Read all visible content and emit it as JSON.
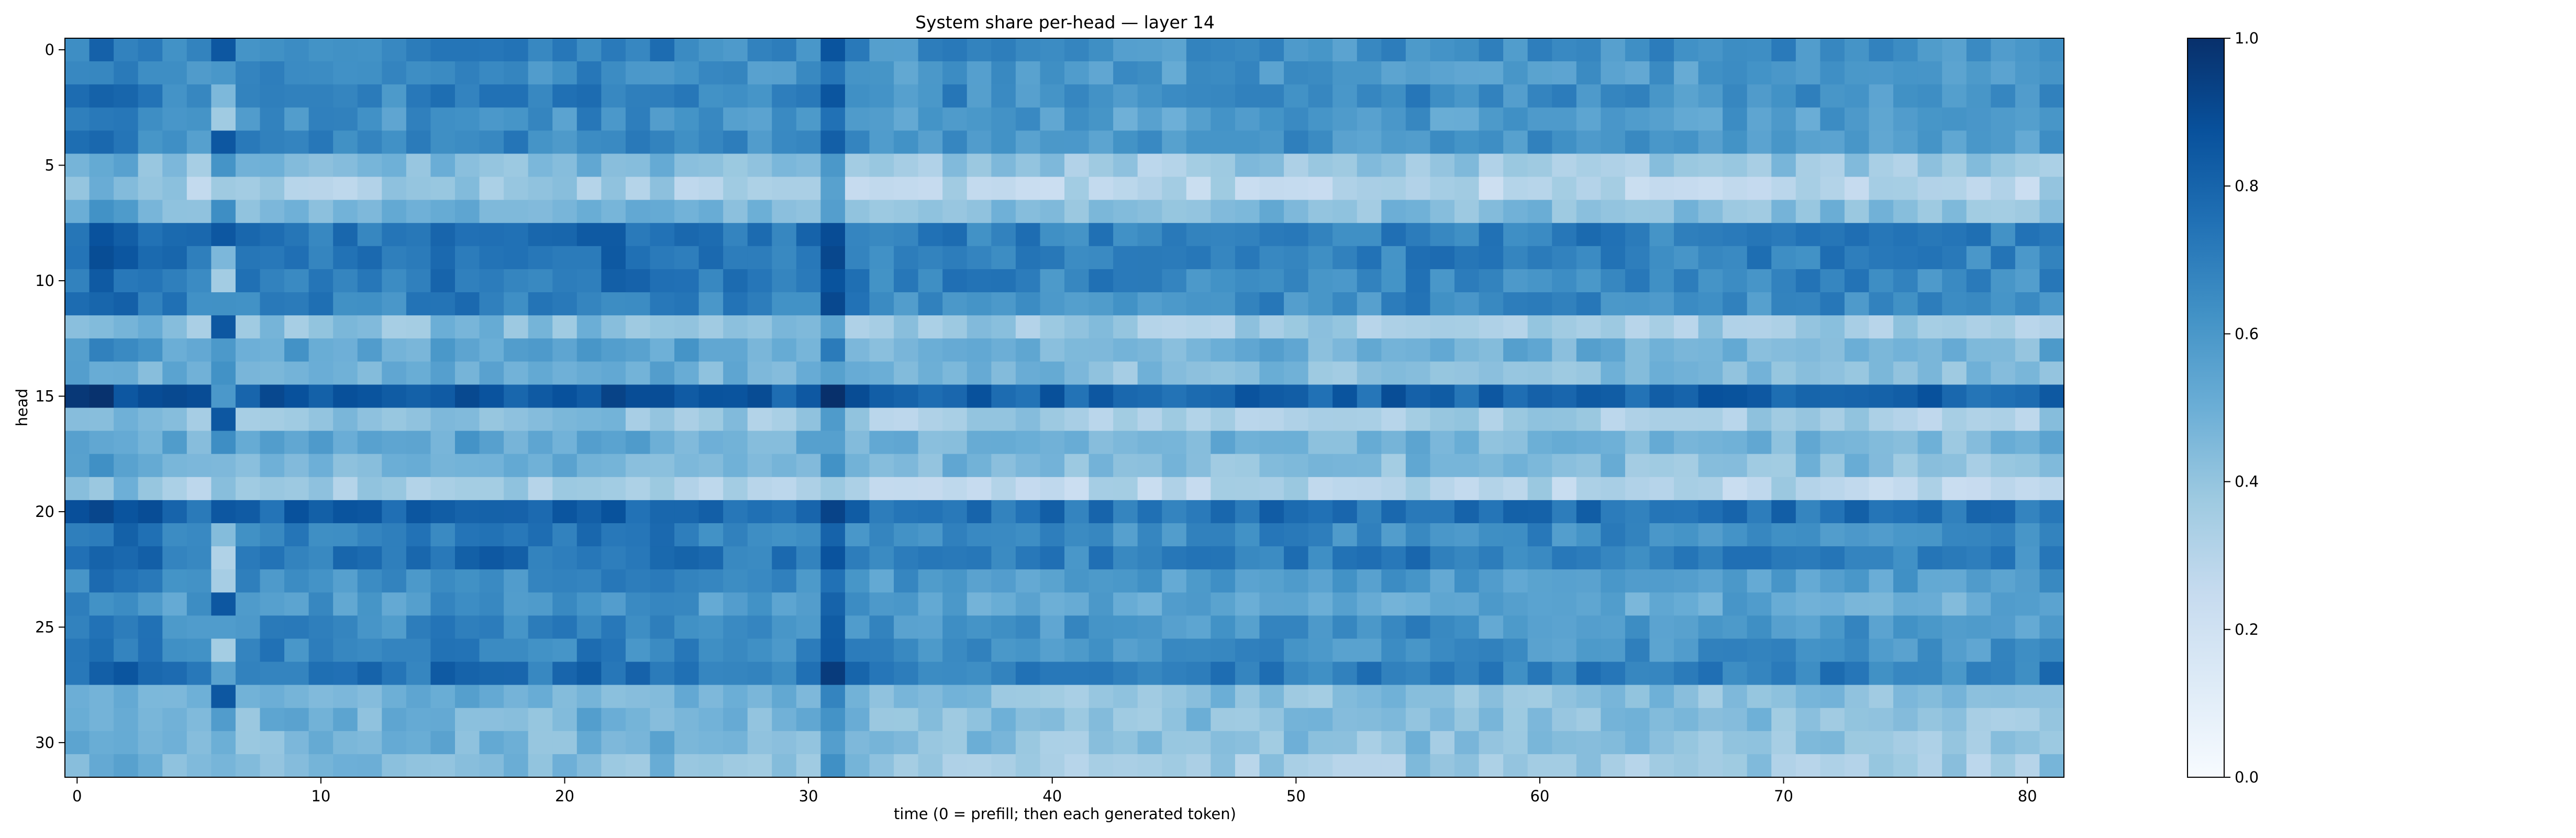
{
  "chart_data": {
    "type": "heatmap",
    "title": "System share per-head — layer 14",
    "xlabel": "time (0 = prefill; then each generated token)",
    "ylabel": "head",
    "n_rows": 32,
    "n_cols": 82,
    "x_ticks": [
      0,
      10,
      20,
      30,
      40,
      50,
      60,
      70,
      80
    ],
    "y_ticks": [
      0,
      5,
      10,
      15,
      20,
      25,
      30
    ],
    "value_range": [
      0.0,
      1.0
    ],
    "colormap": "Blues",
    "colorbar": {
      "ticks": [
        0.0,
        0.2,
        0.4,
        0.6,
        0.8,
        1.0
      ],
      "tick_labels": [
        "0.0",
        "0.2",
        "0.4",
        "0.6",
        "0.8",
        "1.0"
      ],
      "placement": "right"
    },
    "row_base_values": [
      0.66,
      0.63,
      0.66,
      0.6,
      0.64,
      0.41,
      0.33,
      0.46,
      0.72,
      0.72,
      0.7,
      0.67,
      0.39,
      0.52,
      0.47,
      0.84,
      0.38,
      0.5,
      0.46,
      0.33,
      0.78,
      0.67,
      0.72,
      0.62,
      0.57,
      0.64,
      0.65,
      0.72,
      0.45,
      0.45,
      0.44,
      0.4
    ],
    "column_shift_values": [
      0.06,
      0.1,
      0.09,
      0.04,
      0.02,
      0.0,
      -0.15,
      0.0,
      0.03,
      0.03,
      0.02,
      0.02,
      0.02,
      0.01,
      0.02,
      0.04,
      0.05,
      0.05,
      0.03,
      0.02,
      0.02,
      0.05,
      0.05,
      0.03,
      0.04,
      0.02,
      0.01,
      0.0,
      0.0,
      0.0,
      0.02,
      0.08,
      0.0,
      -0.02,
      -0.03,
      -0.02,
      0.0,
      -0.02,
      -0.03,
      -0.02,
      -0.03,
      -0.04,
      -0.02,
      -0.04,
      -0.05,
      -0.04,
      -0.03,
      -0.02,
      -0.03,
      -0.01,
      -0.02,
      -0.03,
      -0.04,
      -0.03,
      -0.03,
      0.0,
      -0.02,
      -0.03,
      -0.04,
      -0.03,
      -0.02,
      -0.03,
      -0.02,
      -0.02,
      -0.03,
      -0.03,
      -0.04,
      -0.02,
      -0.03,
      -0.03,
      -0.02,
      -0.03,
      -0.02,
      -0.03,
      -0.04,
      -0.03,
      -0.04,
      -0.05,
      -0.04,
      -0.04,
      -0.05,
      0.0
    ],
    "cells_note": "Each cell value approximates row base + column shift with small variation; the system token columns 6 and 31 show anomalies."
  }
}
